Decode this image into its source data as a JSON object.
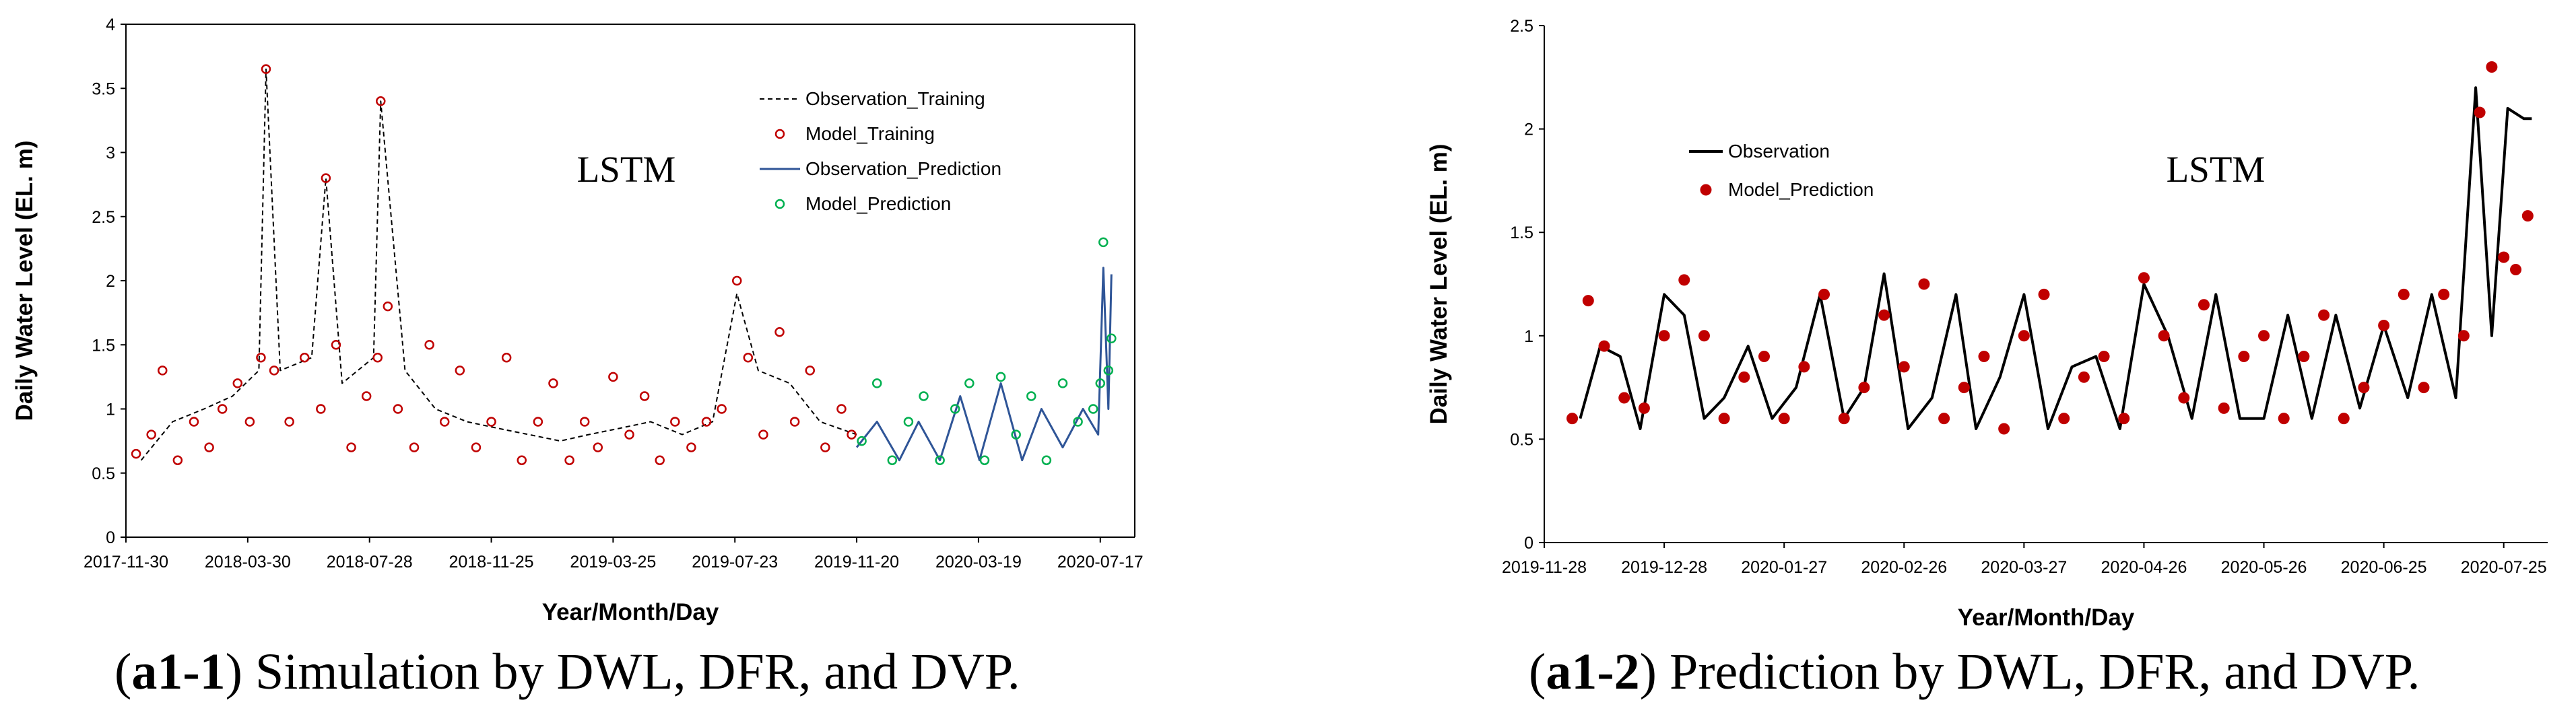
{
  "colors": {
    "observation_training": "#000000",
    "model_training": "#c00000",
    "observation_prediction": "#2f5597",
    "model_prediction": "#00b050",
    "observation_right": "#000000",
    "model_prediction_right": "#c00000"
  },
  "chart_data": [
    {
      "type": "line",
      "title": "",
      "annotation": "LSTM",
      "xlabel": "Year/Month/Day",
      "ylabel": "Daily Water Level (EL. m)",
      "xlim": [
        "2017-11-30",
        "2020-08-20"
      ],
      "ylim": [
        0,
        4
      ],
      "x_ticks": [
        "2017-11-30",
        "2018-03-30",
        "2018-07-28",
        "2018-11-25",
        "2019-03-25",
        "2019-07-23",
        "2019-11-20",
        "2020-03-19",
        "2020-07-17"
      ],
      "y_ticks": [
        "0",
        "0.5",
        "1",
        "1.5",
        "2",
        "2.5",
        "3",
        "3.5",
        "4"
      ],
      "legend": [
        "Observation_Training",
        "Model_Training",
        "Observation_Prediction",
        "Model_Prediction"
      ],
      "legend_position": "top-right",
      "series": [
        {
          "name": "Observation_Training",
          "style": "dashed-line",
          "x": [
            "2017-12-15",
            "2018-01-15",
            "2018-02-15",
            "2018-03-15",
            "2018-04-10",
            "2018-04-17",
            "2018-05-01",
            "2018-06-01",
            "2018-06-15",
            "2018-07-01",
            "2018-08-01",
            "2018-08-08",
            "2018-09-01",
            "2018-10-01",
            "2018-11-01",
            "2018-12-01",
            "2019-01-01",
            "2019-02-01",
            "2019-03-01",
            "2019-04-01",
            "2019-05-01",
            "2019-06-01",
            "2019-07-01",
            "2019-07-25",
            "2019-08-15",
            "2019-09-15",
            "2019-10-15",
            "2019-11-20"
          ],
          "y": [
            0.6,
            0.9,
            1.0,
            1.1,
            1.3,
            3.65,
            1.3,
            1.4,
            2.8,
            1.2,
            1.4,
            3.4,
            1.3,
            1.0,
            0.9,
            0.85,
            0.8,
            0.75,
            0.8,
            0.85,
            0.9,
            0.8,
            0.9,
            1.9,
            1.3,
            1.2,
            0.9,
            0.8
          ]
        },
        {
          "name": "Model_Training",
          "style": "open-circles",
          "x": [
            "2017-12-10",
            "2017-12-25",
            "2018-01-05",
            "2018-01-20",
            "2018-02-05",
            "2018-02-20",
            "2018-03-05",
            "2018-03-20",
            "2018-04-01",
            "2018-04-12",
            "2018-04-17",
            "2018-04-25",
            "2018-05-10",
            "2018-05-25",
            "2018-06-10",
            "2018-06-15",
            "2018-06-25",
            "2018-07-10",
            "2018-07-25",
            "2018-08-05",
            "2018-08-08",
            "2018-08-15",
            "2018-08-25",
            "2018-09-10",
            "2018-09-25",
            "2018-10-10",
            "2018-10-25",
            "2018-11-10",
            "2018-11-25",
            "2018-12-10",
            "2018-12-25",
            "2019-01-10",
            "2019-01-25",
            "2019-02-10",
            "2019-02-25",
            "2019-03-10",
            "2019-03-25",
            "2019-04-10",
            "2019-04-25",
            "2019-05-10",
            "2019-05-25",
            "2019-06-10",
            "2019-06-25",
            "2019-07-10",
            "2019-07-25",
            "2019-08-05",
            "2019-08-20",
            "2019-09-05",
            "2019-09-20",
            "2019-10-05",
            "2019-10-20",
            "2019-11-05",
            "2019-11-15"
          ],
          "y": [
            0.65,
            0.8,
            1.3,
            0.6,
            0.9,
            0.7,
            1.0,
            1.2,
            0.9,
            1.4,
            3.65,
            1.3,
            0.9,
            1.4,
            1.0,
            2.8,
            1.5,
            0.7,
            1.1,
            1.4,
            3.4,
            1.8,
            1.0,
            0.7,
            1.5,
            0.9,
            1.3,
            0.7,
            0.9,
            1.4,
            0.6,
            0.9,
            1.2,
            0.6,
            0.9,
            0.7,
            1.25,
            0.8,
            1.1,
            0.6,
            0.9,
            0.7,
            0.9,
            1.0,
            2.0,
            1.4,
            0.8,
            1.6,
            0.9,
            1.3,
            0.7,
            1.0,
            0.8
          ]
        },
        {
          "name": "Observation_Prediction",
          "style": "line",
          "x": [
            "2019-11-20",
            "2019-12-10",
            "2020-01-01",
            "2020-01-20",
            "2020-02-10",
            "2020-03-01",
            "2020-03-20",
            "2020-04-10",
            "2020-05-01",
            "2020-05-20",
            "2020-06-10",
            "2020-06-30",
            "2020-07-15",
            "2020-07-20",
            "2020-07-25",
            "2020-07-28"
          ],
          "y": [
            0.7,
            0.9,
            0.6,
            0.9,
            0.6,
            1.1,
            0.6,
            1.2,
            0.6,
            1.0,
            0.7,
            1.0,
            0.8,
            2.1,
            1.0,
            2.05
          ]
        },
        {
          "name": "Model_Prediction",
          "style": "open-circles",
          "x": [
            "2019-11-25",
            "2019-12-10",
            "2019-12-25",
            "2020-01-10",
            "2020-01-25",
            "2020-02-10",
            "2020-02-25",
            "2020-03-10",
            "2020-03-25",
            "2020-04-10",
            "2020-04-25",
            "2020-05-10",
            "2020-05-25",
            "2020-06-10",
            "2020-06-25",
            "2020-07-10",
            "2020-07-17",
            "2020-07-20",
            "2020-07-25",
            "2020-07-28"
          ],
          "y": [
            0.75,
            1.2,
            0.6,
            0.9,
            1.1,
            0.6,
            1.0,
            1.2,
            0.6,
            1.25,
            0.8,
            1.1,
            0.6,
            1.2,
            0.9,
            1.0,
            1.2,
            2.3,
            1.3,
            1.55
          ]
        }
      ]
    },
    {
      "type": "line",
      "title": "",
      "annotation": "LSTM",
      "xlabel": "Year/Month/Day",
      "ylabel": "Daily Water Level (EL. m)",
      "xlim": [
        "2019-11-28",
        "2020-08-05"
      ],
      "ylim": [
        0,
        2.5
      ],
      "x_ticks": [
        "2019-11-28",
        "2019-12-28",
        "2020-01-27",
        "2020-02-26",
        "2020-03-27",
        "2020-04-26",
        "2020-05-26",
        "2020-06-25",
        "2020-07-25"
      ],
      "y_ticks": [
        "0",
        "0.5",
        "1",
        "1.5",
        "2",
        "2.5"
      ],
      "legend": [
        "Observation",
        "Model_Prediction"
      ],
      "legend_position": "top-left",
      "series": [
        {
          "name": "Observation",
          "style": "line",
          "x": [
            "2019-12-07",
            "2019-12-12",
            "2019-12-17",
            "2019-12-22",
            "2019-12-28",
            "2020-01-02",
            "2020-01-07",
            "2020-01-12",
            "2020-01-18",
            "2020-01-24",
            "2020-01-30",
            "2020-02-05",
            "2020-02-11",
            "2020-02-16",
            "2020-02-21",
            "2020-02-27",
            "2020-03-04",
            "2020-03-10",
            "2020-03-15",
            "2020-03-21",
            "2020-03-27",
            "2020-04-02",
            "2020-04-08",
            "2020-04-14",
            "2020-04-20",
            "2020-04-26",
            "2020-05-02",
            "2020-05-08",
            "2020-05-14",
            "2020-05-20",
            "2020-05-26",
            "2020-06-01",
            "2020-06-07",
            "2020-06-13",
            "2020-06-19",
            "2020-06-25",
            "2020-07-01",
            "2020-07-07",
            "2020-07-13",
            "2020-07-18",
            "2020-07-22",
            "2020-07-26",
            "2020-07-30",
            "2020-08-01"
          ],
          "y": [
            0.6,
            0.95,
            0.9,
            0.55,
            1.2,
            1.1,
            0.6,
            0.7,
            0.95,
            0.6,
            0.75,
            1.2,
            0.6,
            0.75,
            1.3,
            0.55,
            0.7,
            1.2,
            0.55,
            0.8,
            1.2,
            0.55,
            0.85,
            0.9,
            0.55,
            1.25,
            1.0,
            0.6,
            1.2,
            0.6,
            0.6,
            1.1,
            0.6,
            1.1,
            0.65,
            1.05,
            0.7,
            1.2,
            0.7,
            2.2,
            1.0,
            2.1,
            2.05,
            2.05
          ]
        },
        {
          "name": "Model_Prediction",
          "style": "filled-circles",
          "x": [
            "2019-12-05",
            "2019-12-09",
            "2019-12-13",
            "2019-12-18",
            "2019-12-23",
            "2019-12-28",
            "2020-01-02",
            "2020-01-07",
            "2020-01-12",
            "2020-01-17",
            "2020-01-22",
            "2020-01-27",
            "2020-02-01",
            "2020-02-06",
            "2020-02-11",
            "2020-02-16",
            "2020-02-21",
            "2020-02-26",
            "2020-03-02",
            "2020-03-07",
            "2020-03-12",
            "2020-03-17",
            "2020-03-22",
            "2020-03-27",
            "2020-04-01",
            "2020-04-06",
            "2020-04-11",
            "2020-04-16",
            "2020-04-21",
            "2020-04-26",
            "2020-05-01",
            "2020-05-06",
            "2020-05-11",
            "2020-05-16",
            "2020-05-21",
            "2020-05-26",
            "2020-05-31",
            "2020-06-05",
            "2020-06-10",
            "2020-06-15",
            "2020-06-20",
            "2020-06-25",
            "2020-06-30",
            "2020-07-05",
            "2020-07-10",
            "2020-07-15",
            "2020-07-19",
            "2020-07-22",
            "2020-07-25",
            "2020-07-28",
            "2020-07-31"
          ],
          "y": [
            0.6,
            1.17,
            0.95,
            0.7,
            0.65,
            1.0,
            1.27,
            1.0,
            0.6,
            0.8,
            0.9,
            0.6,
            0.85,
            1.2,
            0.6,
            0.75,
            1.1,
            0.85,
            1.25,
            0.6,
            0.75,
            0.9,
            0.55,
            1.0,
            1.2,
            0.6,
            0.8,
            0.9,
            0.6,
            1.28,
            1.0,
            0.7,
            1.15,
            0.65,
            0.9,
            1.0,
            0.6,
            0.9,
            1.1,
            0.6,
            0.75,
            1.05,
            1.2,
            0.75,
            1.2,
            1.0,
            2.08,
            2.3,
            1.38,
            1.32,
            1.58
          ]
        }
      ]
    }
  ],
  "captions": {
    "left": {
      "label": "a1-1",
      "text": "Simulation by DWL, DFR, and DVP."
    },
    "right": {
      "label": "a1-2",
      "text": "Prediction by DWL, DFR, and DVP."
    }
  }
}
